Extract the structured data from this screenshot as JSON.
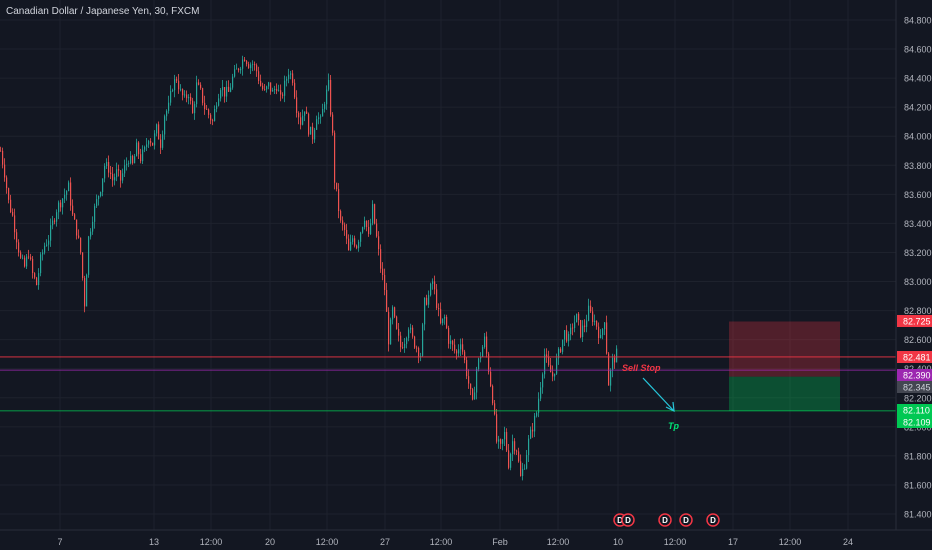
{
  "chart_data": {
    "type": "candlestick",
    "title": "Canadian Dollar / Japanese Yen, 30, FXCM",
    "ylim": [
      81.3,
      84.9
    ],
    "y_ticks": [
      "84.800",
      "84.600",
      "84.400",
      "84.200",
      "84.000",
      "83.800",
      "83.600",
      "83.400",
      "83.200",
      "83.000",
      "82.800",
      "82.600",
      "82.400",
      "82.200",
      "82.000",
      "81.800",
      "81.600",
      "81.400"
    ],
    "x_ticks": [
      "7",
      "13",
      "12:00",
      "20",
      "12:00",
      "27",
      "12:00",
      "Feb",
      "12:00",
      "10",
      "12:00",
      "17",
      "12:00",
      "24"
    ],
    "price_path": [
      [
        0,
        83.9
      ],
      [
        4,
        83.75
      ],
      [
        8,
        83.55
      ],
      [
        12,
        83.45
      ],
      [
        16,
        83.3
      ],
      [
        20,
        83.15
      ],
      [
        24,
        83.1
      ],
      [
        28,
        83.2
      ],
      [
        32,
        83.05
      ],
      [
        36,
        82.98
      ],
      [
        40,
        83.15
      ],
      [
        44,
        83.25
      ],
      [
        48,
        83.3
      ],
      [
        52,
        83.4
      ],
      [
        56,
        83.5
      ],
      [
        60,
        83.55
      ],
      [
        64,
        83.6
      ],
      [
        68,
        83.65
      ],
      [
        72,
        83.45
      ],
      [
        76,
        83.35
      ],
      [
        80,
        83.2
      ],
      [
        84,
        82.85
      ],
      [
        88,
        83.3
      ],
      [
        92,
        83.45
      ],
      [
        96,
        83.55
      ],
      [
        100,
        83.65
      ],
      [
        104,
        83.8
      ],
      [
        108,
        83.78
      ],
      [
        112,
        83.7
      ],
      [
        116,
        83.75
      ],
      [
        120,
        83.7
      ],
      [
        124,
        83.78
      ],
      [
        128,
        83.85
      ],
      [
        132,
        83.8
      ],
      [
        136,
        83.92
      ],
      [
        140,
        83.85
      ],
      [
        144,
        83.9
      ],
      [
        148,
        84.0
      ],
      [
        152,
        83.95
      ],
      [
        156,
        84.05
      ],
      [
        160,
        83.95
      ],
      [
        164,
        84.15
      ],
      [
        168,
        84.2
      ],
      [
        172,
        84.35
      ],
      [
        176,
        84.4
      ],
      [
        180,
        84.3
      ],
      [
        184,
        84.25
      ],
      [
        188,
        84.3
      ],
      [
        192,
        84.15
      ],
      [
        196,
        84.35
      ],
      [
        200,
        84.3
      ],
      [
        204,
        84.2
      ],
      [
        208,
        84.15
      ],
      [
        212,
        84.1
      ],
      [
        216,
        84.25
      ],
      [
        220,
        84.35
      ],
      [
        224,
        84.3
      ],
      [
        228,
        84.3
      ],
      [
        232,
        84.4
      ],
      [
        236,
        84.45
      ],
      [
        240,
        84.5
      ],
      [
        244,
        84.55
      ],
      [
        248,
        84.5
      ],
      [
        252,
        84.5
      ],
      [
        256,
        84.45
      ],
      [
        260,
        84.35
      ],
      [
        264,
        84.3
      ],
      [
        268,
        84.35
      ],
      [
        272,
        84.3
      ],
      [
        276,
        84.35
      ],
      [
        280,
        84.25
      ],
      [
        284,
        84.35
      ],
      [
        288,
        84.45
      ],
      [
        292,
        84.4
      ],
      [
        296,
        84.2
      ],
      [
        300,
        84.1
      ],
      [
        304,
        84.2
      ],
      [
        308,
        84.05
      ],
      [
        312,
        84.0
      ],
      [
        316,
        84.15
      ],
      [
        320,
        84.1
      ],
      [
        324,
        84.25
      ],
      [
        328,
        84.35
      ],
      [
        332,
        84.0
      ],
      [
        334,
        83.7
      ],
      [
        336,
        83.6
      ],
      [
        340,
        83.4
      ],
      [
        344,
        83.35
      ],
      [
        348,
        83.2
      ],
      [
        352,
        83.3
      ],
      [
        356,
        83.25
      ],
      [
        360,
        83.35
      ],
      [
        364,
        83.45
      ],
      [
        368,
        83.3
      ],
      [
        372,
        83.5
      ],
      [
        376,
        83.3
      ],
      [
        380,
        83.1
      ],
      [
        384,
        82.95
      ],
      [
        388,
        82.6
      ],
      [
        392,
        82.8
      ],
      [
        396,
        82.65
      ],
      [
        400,
        82.55
      ],
      [
        404,
        82.6
      ],
      [
        408,
        82.7
      ],
      [
        412,
        82.6
      ],
      [
        416,
        82.55
      ],
      [
        420,
        82.5
      ],
      [
        424,
        82.85
      ],
      [
        428,
        82.9
      ],
      [
        432,
        83.0
      ],
      [
        436,
        82.85
      ],
      [
        440,
        82.7
      ],
      [
        444,
        82.75
      ],
      [
        448,
        82.6
      ],
      [
        452,
        82.55
      ],
      [
        456,
        82.5
      ],
      [
        460,
        82.6
      ],
      [
        464,
        82.45
      ],
      [
        468,
        82.3
      ],
      [
        472,
        82.15
      ],
      [
        476,
        82.4
      ],
      [
        480,
        82.5
      ],
      [
        484,
        82.6
      ],
      [
        488,
        82.4
      ],
      [
        492,
        82.2
      ],
      [
        496,
        81.9
      ],
      [
        500,
        81.85
      ],
      [
        504,
        81.95
      ],
      [
        508,
        81.75
      ],
      [
        512,
        81.9
      ],
      [
        516,
        81.85
      ],
      [
        520,
        81.65
      ],
      [
        524,
        81.75
      ],
      [
        528,
        81.9
      ],
      [
        532,
        82.0
      ],
      [
        536,
        82.1
      ],
      [
        540,
        82.3
      ],
      [
        544,
        82.5
      ],
      [
        548,
        82.4
      ],
      [
        552,
        82.35
      ],
      [
        556,
        82.45
      ],
      [
        560,
        82.55
      ],
      [
        564,
        82.65
      ],
      [
        568,
        82.6
      ],
      [
        572,
        82.7
      ],
      [
        576,
        82.75
      ],
      [
        580,
        82.65
      ],
      [
        584,
        82.7
      ],
      [
        588,
        82.8
      ],
      [
        592,
        82.75
      ],
      [
        596,
        82.7
      ],
      [
        600,
        82.6
      ],
      [
        604,
        82.75
      ],
      [
        608,
        82.3
      ],
      [
        612,
        82.45
      ],
      [
        616,
        82.5
      ]
    ],
    "levels": [
      {
        "price": 82.725,
        "label": "82.725",
        "color": "#f23645"
      },
      {
        "price": 82.481,
        "label": "82.481",
        "color": "#f23645"
      },
      {
        "price": 82.39,
        "label": "82.390",
        "color": "#9c27b0"
      },
      {
        "price": 82.345,
        "label": "82.345",
        "color": "#434651"
      },
      {
        "price": 82.11,
        "label": "82.110",
        "color": "#00c853"
      },
      {
        "price": 82.109,
        "label": "82.109",
        "color": "#00c853"
      }
    ],
    "position_box": {
      "entry": 82.345,
      "stop": 82.725,
      "target": 82.11
    },
    "annotations": [
      {
        "text": "Sell Stop",
        "price": 82.4,
        "color": "#f23645"
      },
      {
        "text": "Tp",
        "price": 81.98,
        "color": "#00e676"
      }
    ],
    "event_icons": [
      "D",
      "D",
      "D",
      "D",
      "D"
    ]
  }
}
